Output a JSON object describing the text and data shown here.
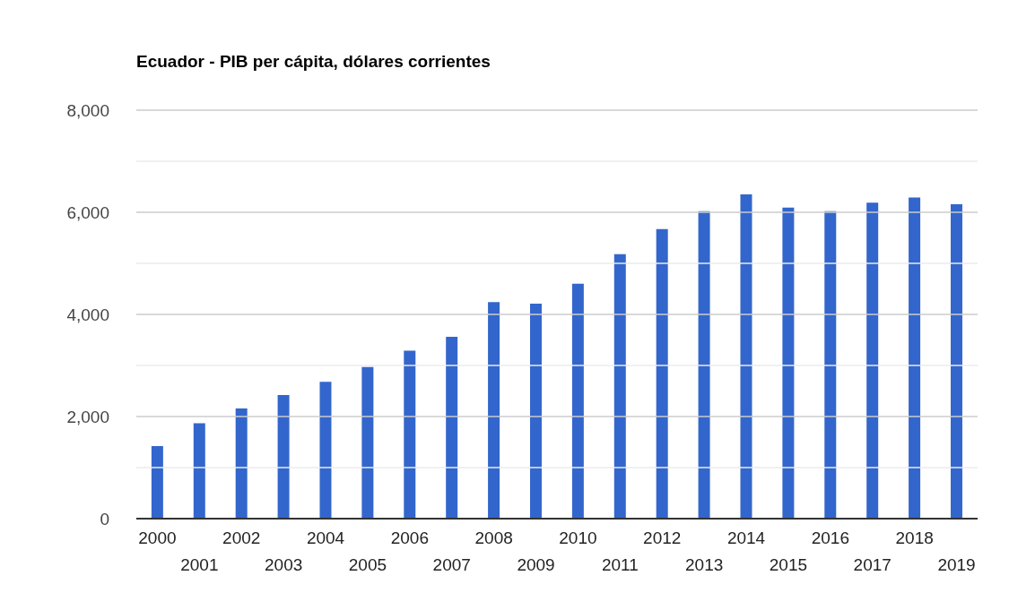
{
  "chart_data": {
    "type": "bar",
    "title": "Ecuador - PIB per cápita, dólares corrientes",
    "categories": [
      "2000",
      "2001",
      "2002",
      "2003",
      "2004",
      "2005",
      "2006",
      "2007",
      "2008",
      "2009",
      "2010",
      "2011",
      "2012",
      "2013",
      "2014",
      "2015",
      "2016",
      "2017",
      "2018",
      "2019"
    ],
    "values": [
      1420,
      1870,
      2160,
      2420,
      2680,
      2970,
      3290,
      3560,
      4240,
      4210,
      4600,
      5180,
      5670,
      6020,
      6350,
      6090,
      6020,
      6190,
      6290,
      6160
    ],
    "color": "#3366cc",
    "ylim": [
      0,
      8000
    ],
    "yticks": [
      {
        "value": 0,
        "label": "0"
      },
      {
        "value": 1000,
        "label": null
      },
      {
        "value": 2000,
        "label": "2,000"
      },
      {
        "value": 3000,
        "label": null
      },
      {
        "value": 4000,
        "label": "4,000"
      },
      {
        "value": 5000,
        "label": null
      },
      {
        "value": 6000,
        "label": "6,000"
      },
      {
        "value": 7000,
        "label": null
      },
      {
        "value": 8000,
        "label": "8,000"
      }
    ],
    "grid": "y"
  }
}
